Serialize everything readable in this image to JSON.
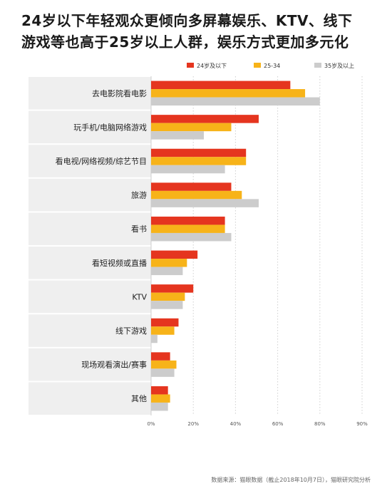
{
  "title_lines": [
    "24岁以下年轻观众更倾向多屏幕娱乐、KTV、线下",
    "游戏等也高于25岁以上人群，娱乐方式更加多元化"
  ],
  "source": "数据来源：猫眼数据（截止2018年10月7日），猫眼研究院分析",
  "colors": {
    "series": [
      "#e5351f",
      "#f7b319",
      "#cccccc"
    ],
    "row_shade": "#efefef",
    "grid": "#cfcfcf",
    "axis_text": "#555555"
  },
  "chart_data": {
    "type": "bar",
    "orientation": "horizontal",
    "categories": [
      "去电影院看电影",
      "玩手机/电脑网络游戏",
      "看电视/网络视频/综艺节目",
      "旅游",
      "看书",
      "看短视频或直播",
      "KTV",
      "线下游戏",
      "现场观看演出/赛事",
      "其他"
    ],
    "series": [
      {
        "name": "24岁及以下",
        "values": [
          66,
          51,
          45,
          38,
          35,
          22,
          20,
          13,
          9,
          8
        ]
      },
      {
        "name": "25-34",
        "values": [
          73,
          38,
          45,
          43,
          35,
          17,
          16,
          11,
          12,
          9
        ]
      },
      {
        "name": "35岁及以上",
        "values": [
          80,
          25,
          35,
          51,
          38,
          15,
          15,
          3,
          11,
          8
        ]
      }
    ],
    "x_ticks": [
      "0%",
      "20%",
      "40%",
      "60%",
      "80%",
      "90%"
    ],
    "xlim": [
      0,
      100
    ],
    "grid": true,
    "legend_position": "top-right"
  }
}
